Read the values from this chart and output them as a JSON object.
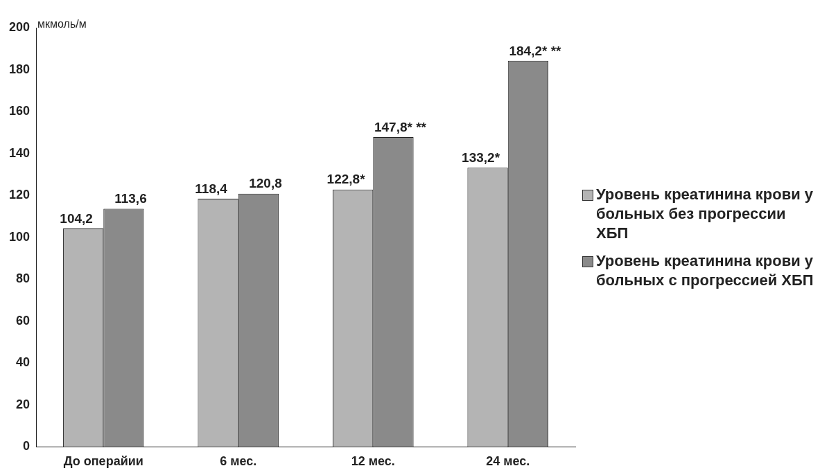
{
  "chart_data": {
    "type": "bar",
    "ylabel": "мкмоль/м",
    "categories": [
      "До операйии",
      "6 мес.",
      "12 мес.",
      "24 мес."
    ],
    "series": [
      {
        "name": "Уровень креатинина крови у больных без прогрессии ХБП",
        "color": "#b4b4b4",
        "values": [
          104.2,
          118.4,
          122.8,
          133.2
        ],
        "value_labels": [
          "104,2",
          "118,4",
          "122,8*",
          "133,2*"
        ]
      },
      {
        "name": "Уровень креатинина крови у больных с прогрессией ХБП",
        "color": "#8a8a8a",
        "values": [
          113.6,
          120.8,
          147.8,
          184.2
        ],
        "value_labels": [
          "113,6",
          "120,8",
          "147,8* **",
          "184,2* **"
        ]
      }
    ],
    "ylim": [
      0,
      200
    ],
    "yticks": [
      0,
      20,
      40,
      60,
      80,
      100,
      120,
      140,
      160,
      180,
      200
    ],
    "grid": false,
    "legend": "right"
  }
}
